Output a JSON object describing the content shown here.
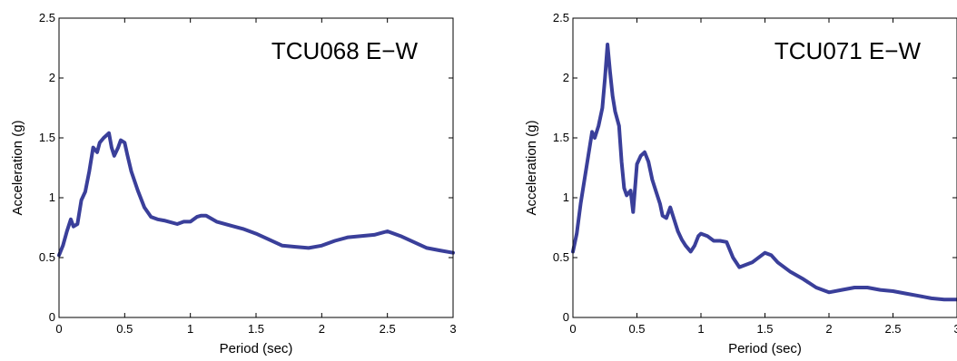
{
  "chart_data": [
    {
      "type": "line",
      "title": "TCU068 E−W",
      "xlabel": "Period (sec)",
      "ylabel": "Acceleration (g)",
      "xlim": [
        0,
        3
      ],
      "ylim": [
        0,
        2.5
      ],
      "xticks": [
        0,
        0.5,
        1,
        1.5,
        2,
        2.5,
        3
      ],
      "xtick_labels": [
        "0",
        "0.5",
        "1",
        "1.5",
        "2",
        "2.5",
        "3"
      ],
      "yticks": [
        0,
        0.5,
        1,
        1.5,
        2,
        2.5
      ],
      "ytick_labels": [
        "0",
        "0.5",
        "1",
        "1.5",
        "2",
        "2.5"
      ],
      "grid": false,
      "line_color": "#3a3f9a",
      "x": [
        0,
        0.03,
        0.06,
        0.09,
        0.11,
        0.14,
        0.17,
        0.2,
        0.23,
        0.26,
        0.29,
        0.31,
        0.34,
        0.36,
        0.38,
        0.4,
        0.42,
        0.45,
        0.47,
        0.5,
        0.52,
        0.55,
        0.6,
        0.65,
        0.7,
        0.75,
        0.8,
        0.9,
        0.95,
        1.0,
        1.05,
        1.08,
        1.12,
        1.2,
        1.3,
        1.4,
        1.5,
        1.6,
        1.7,
        1.8,
        1.9,
        2.0,
        2.1,
        2.2,
        2.3,
        2.4,
        2.5,
        2.6,
        2.7,
        2.8,
        2.9,
        3.0
      ],
      "y": [
        0.52,
        0.6,
        0.72,
        0.82,
        0.76,
        0.78,
        0.98,
        1.05,
        1.22,
        1.42,
        1.38,
        1.46,
        1.5,
        1.52,
        1.54,
        1.42,
        1.35,
        1.42,
        1.48,
        1.46,
        1.36,
        1.22,
        1.06,
        0.92,
        0.84,
        0.82,
        0.81,
        0.78,
        0.8,
        0.8,
        0.84,
        0.85,
        0.85,
        0.8,
        0.77,
        0.74,
        0.7,
        0.65,
        0.6,
        0.59,
        0.58,
        0.6,
        0.64,
        0.67,
        0.68,
        0.69,
        0.72,
        0.68,
        0.63,
        0.58,
        0.56,
        0.54
      ]
    },
    {
      "type": "line",
      "title": "TCU071 E−W",
      "xlabel": "Period (sec)",
      "ylabel": "Acceleration (g)",
      "xlim": [
        0,
        3
      ],
      "ylim": [
        0,
        2.5
      ],
      "xticks": [
        0,
        0.5,
        1,
        1.5,
        2,
        2.5,
        3
      ],
      "xtick_labels": [
        "0",
        "0.5",
        "1",
        "1.5",
        "2",
        "2.5",
        "3"
      ],
      "yticks": [
        0,
        0.5,
        1,
        1.5,
        2,
        2.5
      ],
      "ytick_labels": [
        "0",
        "0.5",
        "1",
        "1.5",
        "2",
        "2.5"
      ],
      "grid": false,
      "line_color": "#3a3f9a",
      "x": [
        0,
        0.03,
        0.06,
        0.09,
        0.12,
        0.15,
        0.17,
        0.2,
        0.23,
        0.25,
        0.27,
        0.29,
        0.31,
        0.33,
        0.36,
        0.38,
        0.4,
        0.42,
        0.45,
        0.47,
        0.5,
        0.53,
        0.56,
        0.59,
        0.62,
        0.65,
        0.68,
        0.7,
        0.73,
        0.76,
        0.79,
        0.82,
        0.85,
        0.88,
        0.92,
        0.95,
        0.98,
        1.0,
        1.05,
        1.1,
        1.15,
        1.2,
        1.25,
        1.3,
        1.4,
        1.5,
        1.55,
        1.6,
        1.7,
        1.8,
        1.9,
        2.0,
        2.1,
        2.2,
        2.3,
        2.4,
        2.5,
        2.6,
        2.7,
        2.8,
        2.9,
        3.0
      ],
      "y": [
        0.55,
        0.7,
        0.95,
        1.15,
        1.35,
        1.55,
        1.5,
        1.6,
        1.75,
        2.0,
        2.28,
        2.05,
        1.85,
        1.72,
        1.6,
        1.3,
        1.08,
        1.02,
        1.06,
        0.88,
        1.28,
        1.35,
        1.38,
        1.3,
        1.15,
        1.05,
        0.95,
        0.85,
        0.83,
        0.92,
        0.82,
        0.72,
        0.65,
        0.6,
        0.55,
        0.6,
        0.68,
        0.7,
        0.68,
        0.64,
        0.64,
        0.63,
        0.5,
        0.42,
        0.46,
        0.54,
        0.52,
        0.46,
        0.38,
        0.32,
        0.25,
        0.21,
        0.23,
        0.25,
        0.25,
        0.23,
        0.22,
        0.2,
        0.18,
        0.16,
        0.15,
        0.15
      ]
    }
  ]
}
